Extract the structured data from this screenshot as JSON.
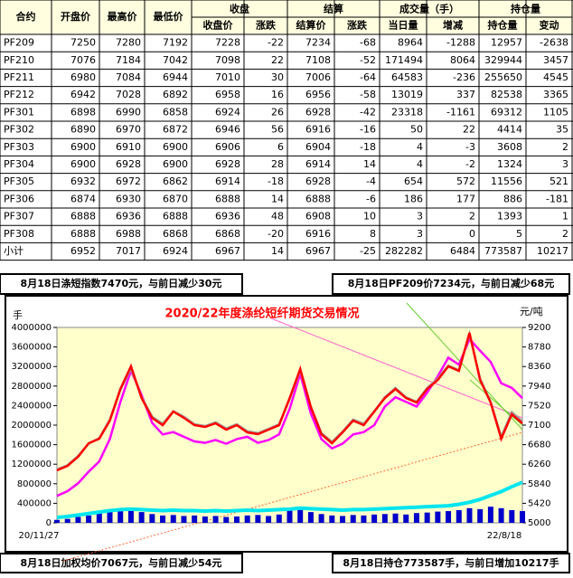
{
  "table": {
    "groups": [
      {
        "label": "收盘",
        "from": 4
      },
      {
        "label": "结算",
        "from": 6
      },
      {
        "label": "成交量（手）",
        "from": 8
      },
      {
        "label": "持仓量",
        "from": 10
      }
    ],
    "columns": [
      "合约",
      "开盘价",
      "最高价",
      "最低价",
      "收盘价",
      "涨跌",
      "结算价",
      "涨跌",
      "当日量",
      "增减",
      "持仓量",
      "变动"
    ],
    "rows": [
      [
        "PF209",
        7250,
        7280,
        7192,
        7228,
        -22,
        7234,
        -68,
        8964,
        -1288,
        12957,
        -2638
      ],
      [
        "PF210",
        7076,
        7184,
        7042,
        7098,
        22,
        7108,
        -52,
        171494,
        8064,
        329944,
        3457
      ],
      [
        "PF211",
        6980,
        7084,
        6944,
        7010,
        30,
        7006,
        -64,
        64583,
        -236,
        255650,
        4545
      ],
      [
        "PF212",
        6942,
        7028,
        6892,
        6958,
        16,
        6956,
        -58,
        13019,
        337,
        82538,
        3365
      ],
      [
        "PF301",
        6898,
        6990,
        6858,
        6924,
        26,
        6928,
        -42,
        23318,
        -1161,
        69312,
        1105
      ],
      [
        "PF302",
        6890,
        6970,
        6872,
        6946,
        56,
        6916,
        -16,
        50,
        22,
        4414,
        35
      ],
      [
        "PF303",
        6900,
        6910,
        6900,
        6906,
        6,
        6904,
        -18,
        4,
        -3,
        3608,
        2
      ],
      [
        "PF304",
        6900,
        6928,
        6900,
        6928,
        28,
        6914,
        14,
        4,
        -2,
        1324,
        3
      ],
      [
        "PF305",
        6932,
        6972,
        6862,
        6914,
        -18,
        6928,
        -4,
        654,
        572,
        11556,
        521
      ],
      [
        "PF306",
        6874,
        6930,
        6870,
        6888,
        14,
        6888,
        -6,
        186,
        177,
        886,
        -181
      ],
      [
        "PF307",
        6888,
        6936,
        6888,
        6936,
        48,
        6908,
        10,
        3,
        2,
        1393,
        1
      ],
      [
        "PF308",
        6888,
        6988,
        6868,
        6868,
        -20,
        6916,
        8,
        3,
        0,
        5,
        2
      ],
      [
        "小计",
        6952,
        7017,
        6924,
        6967,
        14,
        6967,
        -25,
        282282,
        6484,
        773587,
        10217
      ]
    ]
  },
  "notes": [
    "8月18日涤短指数7470元，与前日减少30元",
    "8月18日PF209价7234元，与前日减少68元",
    "8月18日加权均价7067元，与前日减少54元",
    "8月18日持仓773587手，与前日增加10217手"
  ],
  "chart_data": {
    "type": "line",
    "title": "2020/22年度涤纶短纤期货交易情况",
    "ylabel": "手",
    "y2label": "元/吨",
    "categories": [
      "20/11/27",
      null,
      null,
      null,
      null,
      null,
      null,
      null,
      null,
      null,
      null,
      null,
      null,
      null,
      null,
      null,
      null,
      null,
      null,
      null,
      null,
      null,
      null,
      null,
      null,
      null,
      null,
      null,
      null,
      null,
      null,
      null,
      null,
      null,
      null,
      null,
      null,
      null,
      null,
      null,
      null,
      null,
      null,
      null,
      "22/8/18"
    ],
    "ylim": [
      0,
      4000000
    ],
    "yticks": [
      0,
      400000,
      800000,
      1200000,
      1600000,
      2000000,
      2400000,
      2800000,
      3200000,
      3600000,
      4000000
    ],
    "y2lim": [
      5000,
      9200
    ],
    "y2ticks": [
      5000,
      5420,
      5840,
      6260,
      6680,
      7100,
      7520,
      7940,
      8360,
      8780,
      9200
    ],
    "grid": false,
    "bars": {
      "color": "#0000cc",
      "values": [
        60000,
        80000,
        120000,
        150000,
        200000,
        250000,
        300000,
        280000,
        220000,
        180000,
        150000,
        160000,
        140000,
        150000,
        130000,
        140000,
        120000,
        130000,
        150000,
        160000,
        140000,
        170000,
        260000,
        300000,
        220000,
        180000,
        150000,
        140000,
        160000,
        150000,
        170000,
        180000,
        190000,
        170000,
        200000,
        210000,
        230000,
        240000,
        260000,
        300000,
        280000,
        330000,
        300000,
        260000,
        240000
      ]
    },
    "series": [
      {
        "color": "#00e5ee",
        "values": [
          110000,
          130000,
          160000,
          190000,
          220000,
          250000,
          270000,
          280000,
          270000,
          260000,
          250000,
          260000,
          250000,
          250000,
          240000,
          250000,
          240000,
          250000,
          260000,
          250000,
          260000,
          270000,
          280000,
          300000,
          290000,
          280000,
          270000,
          260000,
          270000,
          270000,
          280000,
          290000,
          300000,
          310000,
          320000,
          330000,
          340000,
          350000,
          380000,
          420000,
          480000,
          560000,
          640000,
          740000,
          830000
        ],
        "axis": "y"
      },
      {
        "color": "#ff00ff",
        "values": [
          5580,
          5680,
          5850,
          6100,
          6320,
          6800,
          7600,
          8270,
          7750,
          7150,
          6900,
          6950,
          6850,
          6750,
          6720,
          6780,
          6700,
          6800,
          6850,
          6720,
          6780,
          6900,
          7450,
          8200,
          7350,
          6800,
          6600,
          6700,
          6900,
          6950,
          7100,
          7500,
          7700,
          7600,
          7500,
          7800,
          8150,
          8550,
          8400,
          8950,
          8700,
          8460,
          8000,
          7900,
          7680
        ],
        "axis": "y2"
      },
      {
        "color": "#a0a0a0",
        "values": [
          6150,
          6240,
          6440,
          6700,
          6820,
          7220,
          7860,
          8320,
          7700,
          7280,
          7130,
          7400,
          7280,
          7120,
          7080,
          7160,
          7030,
          7120,
          6970,
          6930,
          7020,
          7120,
          7660,
          8280,
          7500,
          6930,
          6740,
          6960,
          7220,
          7130,
          7400,
          7700,
          7900,
          7700,
          7600,
          7900,
          8100,
          8380,
          8280,
          9060,
          8100,
          7600,
          6850,
          7380,
          7180
        ],
        "axis": "y2"
      },
      {
        "color": "#ff0000",
        "values": [
          6128,
          6225,
          6420,
          6711,
          6808,
          7197,
          7878,
          8364,
          7683,
          7256,
          7100,
          7392,
          7256,
          7100,
          7061,
          7139,
          7003,
          7100,
          6944,
          6906,
          7003,
          7100,
          7683,
          8306,
          7489,
          6906,
          6711,
          6944,
          7197,
          7100,
          7392,
          7683,
          7878,
          7683,
          7586,
          7878,
          8072,
          8364,
          8267,
          9083,
          8072,
          7586,
          6808,
          7333,
          7139
        ],
        "axis": "y2"
      }
    ]
  }
}
